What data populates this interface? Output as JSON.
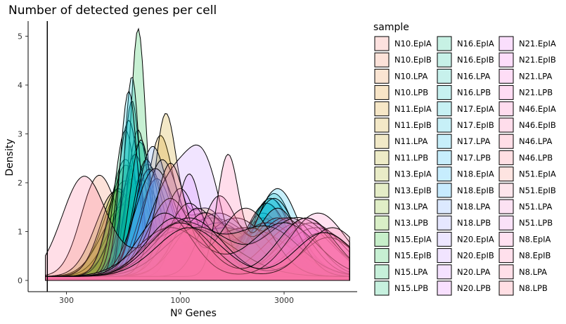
{
  "chart_data": {
    "type": "area",
    "title": "Number of detected genes per cell",
    "xlabel": "Nº Genes",
    "ylabel": "Density",
    "x_scale": "log10",
    "xlim": [
      200,
      6500
    ],
    "ylim": [
      0,
      5.2
    ],
    "x_ticks": [
      {
        "value": 300,
        "label": "300"
      },
      {
        "value": 1000,
        "label": "1000"
      },
      {
        "value": 3000,
        "label": "3000"
      }
    ],
    "y_ticks": [
      {
        "value": 0,
        "label": "0"
      },
      {
        "value": 1,
        "label": "1"
      },
      {
        "value": 2,
        "label": "2"
      },
      {
        "value": 3,
        "label": "3"
      },
      {
        "value": 4,
        "label": "4"
      },
      {
        "value": 5,
        "label": "5"
      }
    ],
    "reference_line_x": 245,
    "legend": {
      "title": "sample",
      "placement": "right",
      "columns": 3
    },
    "series": [
      {
        "name": "N10.EpIA",
        "color": "#F8766D",
        "peaks": [
          [
            550,
            1.8,
            0.09
          ],
          [
            1400,
            1.2,
            0.2
          ]
        ]
      },
      {
        "name": "N10.EpIB",
        "color": "#F27D52",
        "peaks": [
          [
            420,
            1.9,
            0.08
          ],
          [
            1000,
            1.0,
            0.2
          ]
        ]
      },
      {
        "name": "N10.LPA",
        "color": "#EA8331",
        "peaks": [
          [
            600,
            1.6,
            0.1
          ],
          [
            2000,
            1.0,
            0.2
          ]
        ]
      },
      {
        "name": "N10.LPB",
        "color": "#E18A00",
        "peaks": [
          [
            650,
            1.9,
            0.1
          ],
          [
            1800,
            0.9,
            0.2
          ]
        ]
      },
      {
        "name": "N11.EpIA",
        "color": "#D69100",
        "peaks": [
          [
            800,
            2.6,
            0.06
          ],
          [
            1300,
            1.3,
            0.12
          ]
        ]
      },
      {
        "name": "N11.EpIB",
        "color": "#CA9700",
        "peaks": [
          [
            850,
            2.9,
            0.05
          ],
          [
            1300,
            1.4,
            0.12
          ]
        ]
      },
      {
        "name": "N11.LPA",
        "color": "#BD9D00",
        "peaks": [
          [
            700,
            2.2,
            0.08
          ],
          [
            1500,
            1.1,
            0.15
          ]
        ]
      },
      {
        "name": "N11.LPB",
        "color": "#ADA200",
        "peaks": [
          [
            550,
            1.4,
            0.1
          ],
          [
            1600,
            1.0,
            0.2
          ]
        ]
      },
      {
        "name": "N13.EpIA",
        "color": "#9CA700",
        "peaks": [
          [
            500,
            1.6,
            0.09
          ],
          [
            1200,
            0.9,
            0.2
          ]
        ]
      },
      {
        "name": "N13.EpIB",
        "color": "#89AC00",
        "peaks": [
          [
            560,
            2.2,
            0.07
          ],
          [
            1500,
            0.8,
            0.2
          ]
        ]
      },
      {
        "name": "N13.LPA",
        "color": "#72B000",
        "peaks": [
          [
            520,
            1.8,
            0.08
          ],
          [
            2500,
            0.8,
            0.15
          ]
        ]
      },
      {
        "name": "N13.LPB",
        "color": "#53B400",
        "peaks": [
          [
            600,
            2.0,
            0.08
          ],
          [
            2200,
            0.9,
            0.15
          ]
        ]
      },
      {
        "name": "N15.EpIA",
        "color": "#00B70C",
        "peaks": [
          [
            650,
            2.6,
            0.06
          ],
          [
            1600,
            1.0,
            0.2
          ]
        ]
      },
      {
        "name": "N15.EpIB",
        "color": "#00BA38",
        "peaks": [
          [
            640,
            4.8,
            0.035
          ],
          [
            1200,
            0.7,
            0.2
          ]
        ]
      },
      {
        "name": "N15.LPA",
        "color": "#00BC56",
        "peaks": [
          [
            560,
            2.4,
            0.07
          ],
          [
            2600,
            1.2,
            0.1
          ]
        ]
      },
      {
        "name": "N15.LPB",
        "color": "#00BE6E",
        "peaks": [
          [
            560,
            3.0,
            0.05
          ],
          [
            2500,
            1.5,
            0.09
          ]
        ]
      },
      {
        "name": "N16.EpIA",
        "color": "#00BF84",
        "peaks": [
          [
            640,
            3.0,
            0.05
          ],
          [
            2400,
            1.3,
            0.1
          ]
        ]
      },
      {
        "name": "N16.EpIB",
        "color": "#00C098",
        "peaks": [
          [
            600,
            3.6,
            0.04
          ],
          [
            2600,
            1.6,
            0.09
          ]
        ]
      },
      {
        "name": "N16.LPA",
        "color": "#00C1AA",
        "peaks": [
          [
            620,
            2.5,
            0.06
          ],
          [
            2400,
            1.2,
            0.1
          ]
        ]
      },
      {
        "name": "N16.LPB",
        "color": "#00C0BB",
        "peaks": [
          [
            580,
            3.2,
            0.05
          ],
          [
            2700,
            1.7,
            0.09
          ]
        ]
      },
      {
        "name": "N17.EpIA",
        "color": "#00BECB",
        "peaks": [
          [
            600,
            4.1,
            0.035
          ],
          [
            2600,
            1.6,
            0.1
          ]
        ]
      },
      {
        "name": "N17.EpIB",
        "color": "#00BBDA",
        "peaks": [
          [
            580,
            3.8,
            0.04
          ],
          [
            2500,
            1.5,
            0.1
          ]
        ]
      },
      {
        "name": "N17.LPA",
        "color": "#00B7E7",
        "peaks": [
          [
            660,
            2.8,
            0.05
          ],
          [
            2800,
            1.8,
            0.1
          ]
        ]
      },
      {
        "name": "N17.LPB",
        "color": "#00B2F3",
        "peaks": [
          [
            700,
            2.4,
            0.06
          ],
          [
            2700,
            1.6,
            0.1
          ]
        ]
      },
      {
        "name": "N18.EpIA",
        "color": "#00ACFC",
        "peaks": [
          [
            720,
            2.2,
            0.07
          ],
          [
            2800,
            1.2,
            0.12
          ]
        ]
      },
      {
        "name": "N18.EpIB",
        "color": "#00A5FF",
        "peaks": [
          [
            780,
            2.0,
            0.08
          ],
          [
            2500,
            1.1,
            0.15
          ]
        ]
      },
      {
        "name": "N18.LPA",
        "color": "#619CFF",
        "peaks": [
          [
            740,
            2.5,
            0.07
          ],
          [
            1500,
            1.3,
            0.15
          ]
        ]
      },
      {
        "name": "N18.LPB",
        "color": "#8B93FF",
        "peaks": [
          [
            820,
            2.3,
            0.08
          ],
          [
            1800,
            1.2,
            0.15
          ]
        ]
      },
      {
        "name": "N20.EpIA",
        "color": "#A88BFF",
        "peaks": [
          [
            760,
            2.1,
            0.09
          ],
          [
            2000,
            1.0,
            0.2
          ]
        ]
      },
      {
        "name": "N20.EpIB",
        "color": "#BE82FF",
        "peaks": [
          [
            900,
            1.9,
            0.1
          ],
          [
            1300,
            2.0,
            0.08
          ]
        ]
      },
      {
        "name": "N20.LPA",
        "color": "#D079FF",
        "peaks": [
          [
            1100,
            2.1,
            0.06
          ],
          [
            3800,
            1.2,
            0.12
          ]
        ]
      },
      {
        "name": "N20.LPB",
        "color": "#DF70FA",
        "peaks": [
          [
            1000,
            1.8,
            0.08
          ],
          [
            3500,
            1.1,
            0.15
          ]
        ]
      },
      {
        "name": "N21.EpIA",
        "color": "#EA69F2",
        "peaks": [
          [
            900,
            1.6,
            0.1
          ],
          [
            4200,
            1.0,
            0.15
          ]
        ]
      },
      {
        "name": "N21.EpIB",
        "color": "#F464E6",
        "peaks": [
          [
            1100,
            1.5,
            0.1
          ],
          [
            4000,
            1.1,
            0.14
          ]
        ]
      },
      {
        "name": "N21.LPA",
        "color": "#FA62D8",
        "peaks": [
          [
            1200,
            1.4,
            0.1
          ],
          [
            4500,
            0.9,
            0.14
          ]
        ]
      },
      {
        "name": "N21.LPB",
        "color": "#FE61C9",
        "peaks": [
          [
            1300,
            1.3,
            0.12
          ],
          [
            3200,
            1.2,
            0.12
          ]
        ]
      },
      {
        "name": "N46.EpIA",
        "color": "#FF62B8",
        "peaks": [
          [
            1500,
            1.6,
            0.08
          ],
          [
            3000,
            1.2,
            0.12
          ]
        ]
      },
      {
        "name": "N46.EpIB",
        "color": "#FF65A5",
        "peaks": [
          [
            1650,
            2.4,
            0.05
          ],
          [
            2800,
            1.4,
            0.1
          ]
        ]
      },
      {
        "name": "N46.LPA",
        "color": "#FF6992",
        "peaks": [
          [
            360,
            2.0,
            0.1
          ],
          [
            1100,
            1.0,
            0.2
          ]
        ]
      },
      {
        "name": "N46.LPB",
        "color": "#FD6F7E",
        "peaks": [
          [
            900,
            2.3,
            0.07
          ],
          [
            2000,
            1.4,
            0.12
          ]
        ]
      },
      {
        "name": "N51.EpIA",
        "color": "#F98477",
        "peaks": [
          [
            1000,
            1.1,
            0.15
          ],
          [
            2500,
            1.0,
            0.15
          ]
        ]
      },
      {
        "name": "N51.EpIB",
        "color": "#F58BA7",
        "peaks": [
          [
            1200,
            1.0,
            0.15
          ],
          [
            3500,
            1.2,
            0.15
          ]
        ]
      },
      {
        "name": "N51.LPA",
        "color": "#F07CC9",
        "peaks": [
          [
            1100,
            1.2,
            0.15
          ],
          [
            4800,
            0.8,
            0.12
          ]
        ]
      },
      {
        "name": "N51.LPB",
        "color": "#E77BE0",
        "peaks": [
          [
            900,
            1.0,
            0.15
          ],
          [
            3000,
            1.1,
            0.15
          ]
        ]
      },
      {
        "name": "N8.EpIA",
        "color": "#FF77BE",
        "peaks": [
          [
            850,
            1.3,
            0.12
          ],
          [
            4300,
            1.3,
            0.13
          ]
        ]
      },
      {
        "name": "N8.EpIB",
        "color": "#FF70A8",
        "peaks": [
          [
            950,
            1.2,
            0.13
          ],
          [
            3800,
            1.2,
            0.13
          ]
        ]
      },
      {
        "name": "N8.LPA",
        "color": "#FF6C96",
        "peaks": [
          [
            1000,
            1.1,
            0.14
          ],
          [
            5000,
            1.0,
            0.12
          ]
        ]
      },
      {
        "name": "N8.LPB",
        "color": "#FF6F85",
        "peaks": [
          [
            1100,
            1.0,
            0.15
          ],
          [
            4600,
            0.9,
            0.13
          ]
        ]
      }
    ]
  }
}
